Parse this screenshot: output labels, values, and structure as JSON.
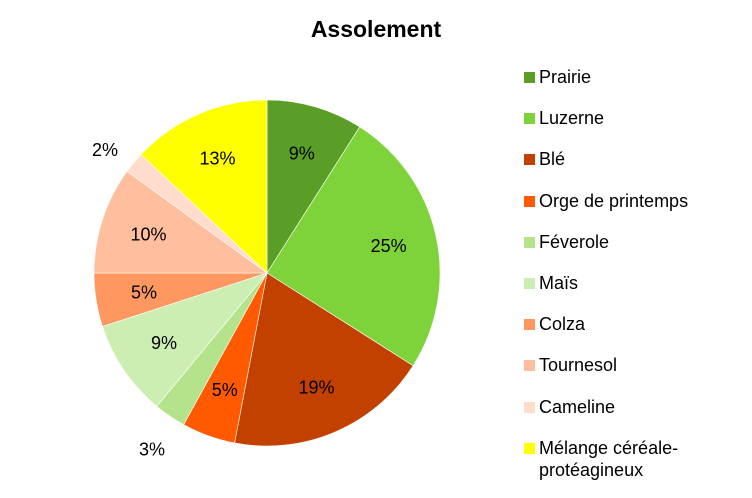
{
  "chart_data": {
    "type": "pie",
    "title": "Assolement",
    "legend_position": "right",
    "slices": [
      {
        "name": "Prairie",
        "value": 9,
        "label": "9%",
        "color": "#5a9e27"
      },
      {
        "name": "Luzerne",
        "value": 25,
        "label": "25%",
        "color": "#7ed23a"
      },
      {
        "name": "Blé",
        "value": 19,
        "label": "19%",
        "color": "#c24000"
      },
      {
        "name": "Orge de printemps",
        "value": 5,
        "label": "5%",
        "color": "#ff5a00"
      },
      {
        "name": "Féverole",
        "value": 3,
        "label": "3%",
        "color": "#b4e38c"
      },
      {
        "name": "Maïs",
        "value": 9,
        "label": "9%",
        "color": "#cdeeb2"
      },
      {
        "name": "Colza",
        "value": 5,
        "label": "5%",
        "color": "#ff9860"
      },
      {
        "name": "Tournesol",
        "value": 10,
        "label": "10%",
        "color": "#ffbe9e"
      },
      {
        "name": "Cameline",
        "value": 2,
        "label": "2%",
        "color": "#ffdccb"
      },
      {
        "name": "Mélange céréale-protéagineux",
        "value": 13,
        "label": "13%",
        "color": "#ffff00"
      }
    ]
  }
}
